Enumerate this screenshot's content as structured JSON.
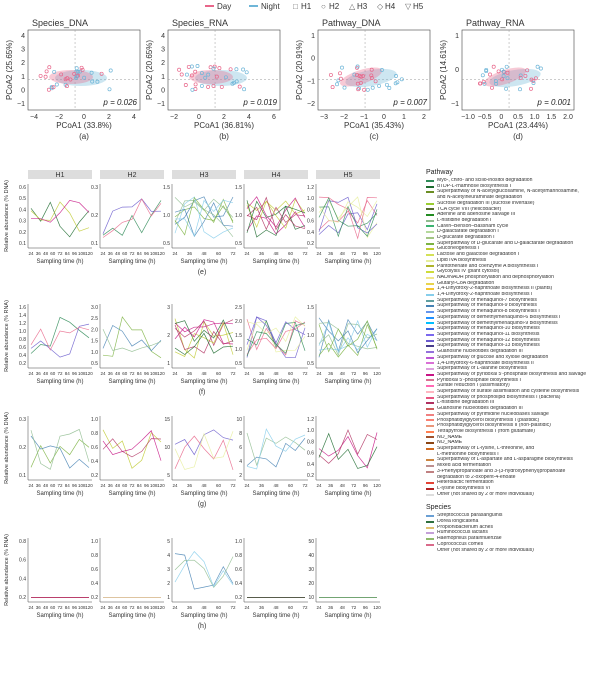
{
  "legend_top": [
    {
      "label": "Day",
      "color": "#e8668a",
      "mark": "line"
    },
    {
      "label": "Night",
      "color": "#6fb6d8",
      "mark": "line"
    },
    {
      "label": "H1",
      "mark": "□"
    },
    {
      "label": "H2",
      "mark": "○"
    },
    {
      "label": "H3",
      "mark": "△"
    },
    {
      "label": "H4",
      "mark": "◇"
    },
    {
      "label": "H5",
      "mark": "▽"
    }
  ],
  "pcoa_panels": [
    {
      "title": "Species_DNA",
      "xlabel": "PCoA1 (33.8%)",
      "ylabel": "PCoA2 (25.65%)",
      "p": "0.026",
      "letter": "(a)",
      "xticks": [
        "−4",
        "−2",
        "0",
        "2",
        "4"
      ],
      "yticks": [
        "4",
        "3",
        "2",
        "1",
        "0",
        "−1"
      ]
    },
    {
      "title": "Species_RNA",
      "xlabel": "PCoA1 (36.81%)",
      "ylabel": "PCoA2 (20.65%)",
      "p": "0.019",
      "letter": "(b)",
      "xticks": [
        "−2",
        "0",
        "2",
        "4",
        "6"
      ],
      "yticks": [
        "4",
        "3",
        "2",
        "1",
        "0",
        "−1"
      ]
    },
    {
      "title": "Pathway_DNA",
      "xlabel": "PCoA1 (35.43%)",
      "ylabel": "PCoA2 (20.91%)",
      "p": "0.007",
      "letter": "(c)",
      "xticks": [
        "−3",
        "−2",
        "−1",
        "0",
        "1",
        "2"
      ],
      "yticks": [
        "1",
        "0",
        "−1",
        "−2"
      ]
    },
    {
      "title": "Pathway_RNA",
      "xlabel": "PCoA1 (23.44%)",
      "ylabel": "PCoA2 (14.61%)",
      "p": "0.001",
      "letter": "(d)",
      "xticks": [
        "−1.0",
        "−0.5",
        "0",
        "0.5",
        "1.0",
        "1.5",
        "2.0"
      ],
      "yticks": [
        "1",
        "0",
        "−1"
      ]
    }
  ],
  "p_prefix": "p = ",
  "hosts": [
    "H1",
    "H2",
    "H3",
    "H4",
    "H5"
  ],
  "time_rows": [
    {
      "ylabel": "Relative abundance (% DNA)",
      "letter": "(e)",
      "xlabel": "Sampling time (h)",
      "yticks": [
        [
          "0.6",
          "0.5",
          "0.4",
          "0.3",
          "0.2",
          "0.1"
        ],
        [
          "0.3",
          "0.2",
          "0.1"
        ],
        [
          "1.5",
          "1.0",
          "0.5"
        ],
        [
          "1.5",
          "1.0",
          "0.5"
        ],
        [
          "1.2",
          "1.0",
          "0.8",
          "0.6",
          "0.4",
          "0.2"
        ]
      ],
      "xticks": [
        [
          "24",
          "36",
          "48",
          "60",
          "72",
          "84",
          "96",
          "108",
          "120"
        ],
        [
          "24",
          "36",
          "48",
          "60",
          "72",
          "84",
          "96",
          "108",
          "120"
        ],
        [
          "24",
          "36",
          "48",
          "60",
          "72"
        ],
        [
          "24",
          "36",
          "48",
          "60",
          "72"
        ],
        [
          "24",
          "36",
          "48",
          "72",
          "96",
          "120"
        ]
      ]
    },
    {
      "ylabel": "Relative abundance (% RNA)",
      "letter": "(f)",
      "xlabel": "Sampling time (h)",
      "yticks": [
        [
          "1.6",
          "1.4",
          "1.2",
          "1.0",
          "0.8",
          "0.6",
          "0.4",
          "0.2"
        ],
        [
          "3.0",
          "2.5",
          "2.0",
          "1.5",
          "1.0",
          "0.5"
        ],
        [
          "3",
          "2",
          "1"
        ],
        [
          "2.5",
          "2.0",
          "1.5",
          "1.0",
          "0.5"
        ],
        [
          "1.5",
          "1.0",
          "0.5"
        ]
      ],
      "xticks": [
        [
          "24",
          "36",
          "48",
          "60",
          "72",
          "84",
          "96",
          "108",
          "120"
        ],
        [
          "24",
          "36",
          "48",
          "60",
          "72",
          "84",
          "96",
          "108",
          "120"
        ],
        [
          "24",
          "36",
          "48",
          "60",
          "72"
        ],
        [
          "24",
          "36",
          "48",
          "60",
          "72"
        ],
        [
          "24",
          "36",
          "48",
          "72",
          "96",
          "120"
        ]
      ]
    },
    {
      "ylabel": "Relative abundance (% DNA)",
      "letter": "(g)",
      "xlabel": "Sampling time (h)",
      "yticks": [
        [
          "0.3",
          "0.2",
          "0.1"
        ],
        [
          "1.0",
          "0.8",
          "0.6",
          "0.4",
          "0.2"
        ],
        [
          "15",
          "10",
          "5"
        ],
        [
          "10",
          "8",
          "6",
          "4",
          "2"
        ],
        [
          "1.2",
          "1.0",
          "0.8",
          "0.6",
          "0.4",
          "0.2"
        ]
      ],
      "xticks": [
        [
          "24",
          "36",
          "48",
          "60",
          "72",
          "84",
          "96",
          "108",
          "120"
        ],
        [
          "24",
          "36",
          "48",
          "60",
          "72",
          "84",
          "96",
          "108",
          "120"
        ],
        [
          "24",
          "36",
          "48",
          "60",
          "72"
        ],
        [
          "24",
          "36",
          "48",
          "60",
          "72"
        ],
        [
          "24",
          "36",
          "48",
          "72",
          "96",
          "120"
        ]
      ]
    },
    {
      "ylabel": "Relative abundance (% RNA)",
      "letter": "(h)",
      "xlabel": "Sampling time (h)",
      "yticks": [
        [
          "0.8",
          "0.6",
          "0.4",
          "0.2"
        ],
        [
          "1.0",
          "0.8",
          "0.6",
          "0.4",
          "0.2"
        ],
        [
          "5",
          "4",
          "3",
          "2",
          "1"
        ],
        [
          "1.0",
          "0.8",
          "0.6",
          "0.4",
          "0.2"
        ],
        [
          "50",
          "40",
          "30",
          "20",
          "10"
        ]
      ],
      "xticks": [
        [
          "24",
          "36",
          "48",
          "60",
          "72",
          "84",
          "96",
          "108",
          "120"
        ],
        [
          "24",
          "36",
          "48",
          "60",
          "72",
          "84",
          "96",
          "108",
          "120"
        ],
        [
          "24",
          "36",
          "48",
          "60",
          "72"
        ],
        [
          "24",
          "36",
          "48",
          "60",
          "72"
        ],
        [
          "24",
          "36",
          "48",
          "72",
          "96",
          "120"
        ]
      ]
    }
  ],
  "pathway_header": "Pathway",
  "pathways": [
    {
      "label": "Myo-, chiro- and scillo-inositol degradation",
      "color": "#2e8b57"
    },
    {
      "label": "dTDP-L-rhamnose biosynthesis I",
      "color": "#1d6b2f"
    },
    {
      "label": "Superpathway of N-acetylglucosamine, N-acetylmannosamine,",
      "color": "#6b8e23"
    },
    {
      "label": "and N-acetylneuraminate degradation",
      "color": ""
    },
    {
      "label": "Sucrose degradation III (sucrose invertase)",
      "color": "#9acd32"
    },
    {
      "label": "TCA cycle VIII (helicobacter)",
      "color": "#556b2f"
    },
    {
      "label": "Adenine and adenosine salvage III",
      "color": "#228b22"
    },
    {
      "label": "L-histidine degradation I",
      "color": "#8fbc8f"
    },
    {
      "label": "Calvin–Benson–Bassham cycle",
      "color": "#3cb371"
    },
    {
      "label": "D-galactarate degradation I",
      "color": "#b5d99c"
    },
    {
      "label": "D-glucarate degradation I",
      "color": "#a3c585"
    },
    {
      "label": "Superpathway of D-glucarate and D-galactarate degradation",
      "color": "#7cb342"
    },
    {
      "label": "Gluconeogenesis I",
      "color": "#c0ca33"
    },
    {
      "label": "Lactose and galactose degradation I",
      "color": "#d4e157"
    },
    {
      "label": "Lipid IVA biosynthesis",
      "color": "#e6ee9c"
    },
    {
      "label": "Pantothenate and coenzyme A biosynthesis I",
      "color": "#afb42b"
    },
    {
      "label": "Glycolysis IV (plant cytosol)",
      "color": "#cddc39"
    },
    {
      "label": "NAD/NADH phosphorylation and dephosphorylation",
      "color": "#f0e68c"
    },
    {
      "label": "Glutaryl-CoA degradation",
      "color": "#e8d44d"
    },
    {
      "label": "1,4-Dihydroxy-2-naphthoate biosynthesis II (plants)",
      "color": "#f4c430"
    },
    {
      "label": "1,4-Dihydroxy-2-naphthoate biosynthesis I",
      "color": "#87ceeb"
    },
    {
      "label": "Superpathway of menaquinol-7 biosynthesis",
      "color": "#5f9ea0"
    },
    {
      "label": "Superpathway of menaquinol-9 biosynthesis",
      "color": "#4682b4"
    },
    {
      "label": "Superpathway of menaquinol-8 biosynthesis I",
      "color": "#6495ed"
    },
    {
      "label": "Superpathway of demethylmenaquinol-6 biosynthesis I",
      "color": "#1e90ff"
    },
    {
      "label": "Superpathway of demethylmenaquinol-9 biosynthesis",
      "color": "#00bfff"
    },
    {
      "label": "Superpathway of menaquinol-10 biosynthesis",
      "color": "#4169e1"
    },
    {
      "label": "Superpathway of menaquinol-11 biosynthesis",
      "color": "#7b68ee"
    },
    {
      "label": "Superpathway of menaquinol-12 biosynthesis",
      "color": "#6a5acd"
    },
    {
      "label": "Superpathway of menaquinol-13 biosynthesis",
      "color": "#483d8b"
    },
    {
      "label": "Guanosine nucleotides degradation III",
      "color": "#9370db"
    },
    {
      "label": "Superpathway of glucose and xylose degradation",
      "color": "#ba55d3"
    },
    {
      "label": "1,4-Dihydroxy-6-naphthoate biosynthesis II",
      "color": "#da70d6"
    },
    {
      "label": "Superpathway of L-alanine biosynthesis",
      "color": "#dda0dd"
    },
    {
      "label": "Superpathway of pyridoxal 5'-phosphate biosynthesis and salvage",
      "color": "#c71585"
    },
    {
      "label": "Pyridoxal 5'-phosphate biosynthesis I",
      "color": "#db7093"
    },
    {
      "label": "Sulfate reduction I (assimilatory)",
      "color": "#ff69b4"
    },
    {
      "label": "Superpathway of sulfate assimilation and cysteine biosynthesis",
      "color": "#ffb6c1"
    },
    {
      "label": "Superpathway of phospholipid biosynthesis I (bacteria)",
      "color": "#e75480"
    },
    {
      "label": "L-histidine degradation III",
      "color": "#b03060"
    },
    {
      "label": "Guanosine nucleotides degradation III",
      "color": "#cd5c5c"
    },
    {
      "label": "Superpathway of pyrimidine nucleobases salvage",
      "color": "#f08080"
    },
    {
      "label": "Phosphatidylglycerol biosynthesis I (plastidic)",
      "color": "#fa8072"
    },
    {
      "label": "Phosphatidylglycerol biosynthesis II (non-plastidic)",
      "color": "#e9967a"
    },
    {
      "label": "Tetrapyrrole biosynthesis I (from glutamate)",
      "color": "#ff7f50"
    },
    {
      "label": "NO_NAME",
      "color": "#a0522d"
    },
    {
      "label": "NO_NAME",
      "color": "#8b4513"
    },
    {
      "label": "Superpathway of L-lysine, L-threonine, and",
      "color": "#d2691e"
    },
    {
      "label": "L-methionine biosynthesis I",
      "color": ""
    },
    {
      "label": "Superpathway of L-aspartate and L-asparagine biosynthesis",
      "color": "#cd853f"
    },
    {
      "label": "Mixed acid fermentation",
      "color": "#bc8f8f"
    },
    {
      "label": "3-Phenylpropanoate and 3-(3-hydroxyphenyl)propanoate",
      "color": "#c08081"
    },
    {
      "label": "degradation to 2-oxopent-4-enoate",
      "color": ""
    },
    {
      "label": "Heterolactic fermentation",
      "color": "#e34234"
    },
    {
      "label": "L-lysine biosynthesis VI",
      "color": "#b22222"
    },
    {
      "label": "Other (not shared by 2 or more individuals)",
      "color": "#dddddd"
    }
  ],
  "species_header": "Species",
  "species": [
    {
      "label": "Streptococcus parasanguinis",
      "color": "#6a9fd4"
    },
    {
      "label": "Dorea longicatena",
      "color": "#2f6f3e"
    },
    {
      "label": "Propionibacterium acnes",
      "color": "#e0c070"
    },
    {
      "label": "Ruminococcus lactaris",
      "color": "#c4a0d8"
    },
    {
      "label": "Haemophilus parainfluenzae",
      "color": "#8fb96b"
    },
    {
      "label": "Coprococcus comes",
      "color": "#d96a8a"
    },
    {
      "label": "Other (not shared by 2 or more individuals)",
      "color": ""
    }
  ],
  "colors": {
    "day": "#e8668a",
    "night": "#6fb6d8"
  }
}
